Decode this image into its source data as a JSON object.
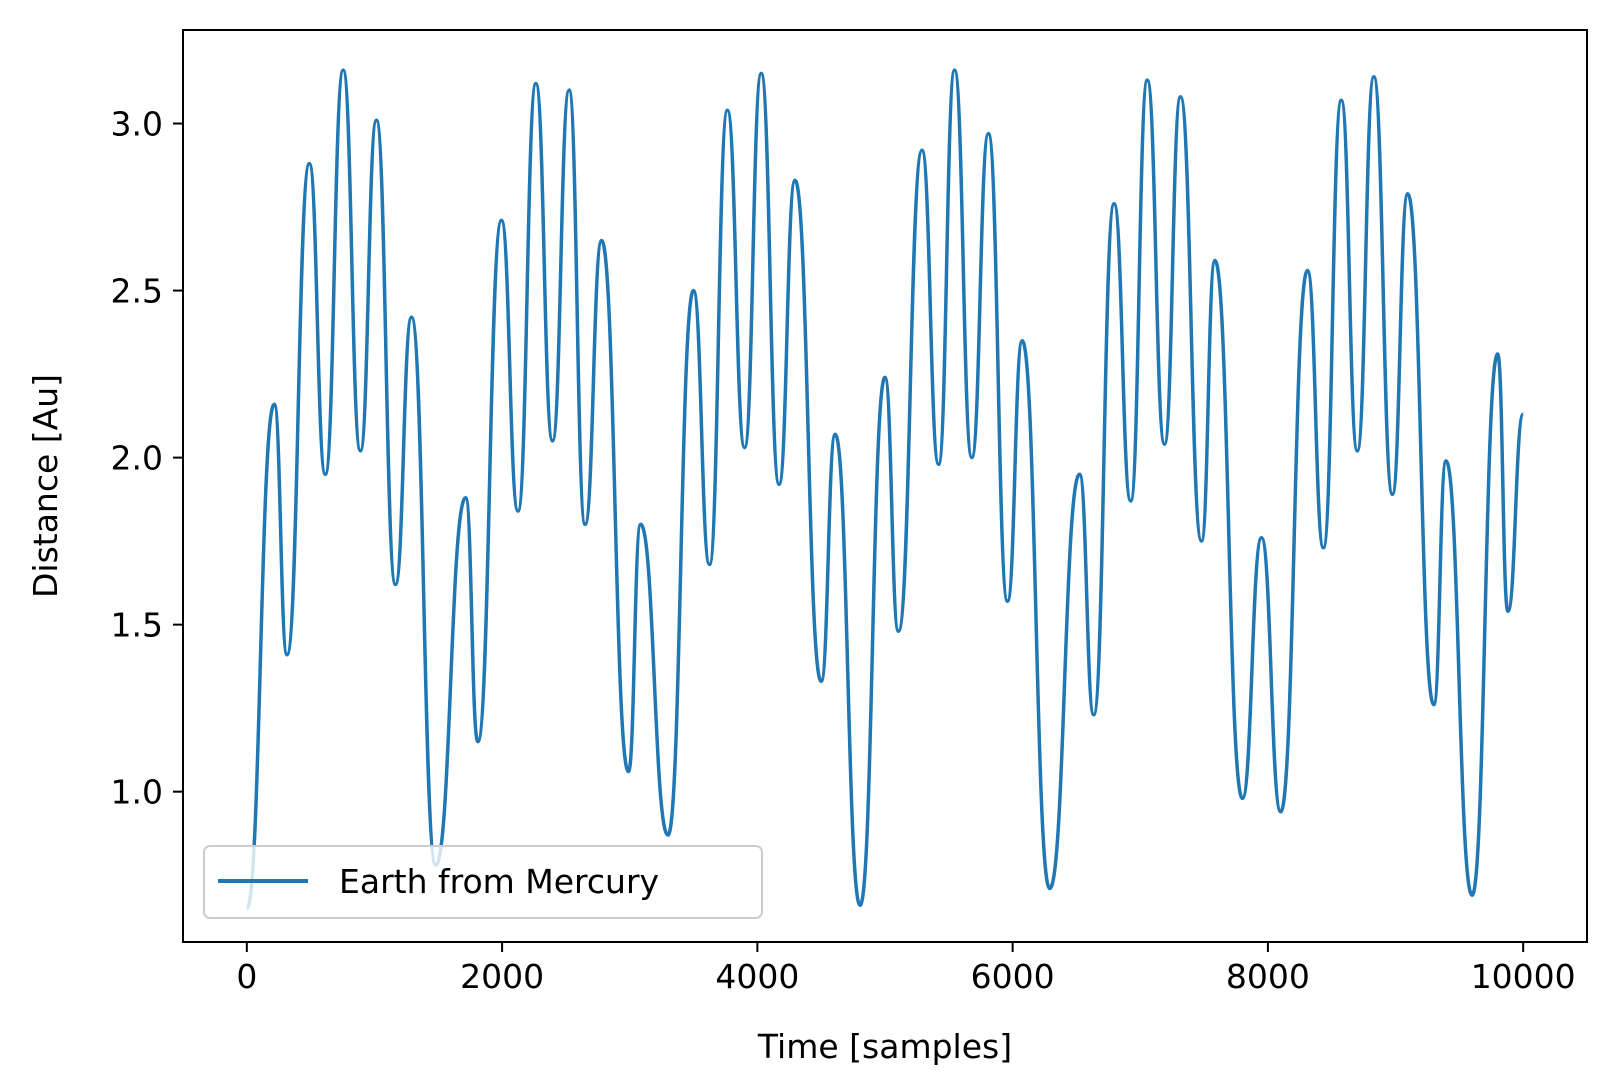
{
  "chart_data": {
    "type": "line",
    "title": "",
    "xlabel": "Time [samples]",
    "ylabel": "Distance [Au]",
    "xlim": [
      -500,
      10500
    ],
    "ylim": [
      0.55,
      3.28
    ],
    "xticks": [
      0,
      2000,
      4000,
      6000,
      8000,
      10000
    ],
    "xtick_labels": [
      "0",
      "2000",
      "4000",
      "6000",
      "8000",
      "10000"
    ],
    "yticks": [
      1.0,
      1.5,
      2.0,
      2.5,
      3.0
    ],
    "ytick_labels": [
      "1.0",
      "1.5",
      "2.0",
      "2.5",
      "3.0"
    ],
    "grid": false,
    "legend_position": "lower-left",
    "colors": {
      "series": "#1f77b4",
      "axes": "#000000",
      "legend_border": "#cccccc"
    },
    "series": [
      {
        "name": "Earth from Mercury",
        "x": [
          0,
          215,
          315,
          490,
          615,
          755,
          890,
          1015,
          1165,
          1290,
          1480,
          1715,
          1810,
          1995,
          2125,
          2265,
          2395,
          2525,
          2650,
          2780,
          2990,
          3085,
          3300,
          3500,
          3625,
          3765,
          3900,
          4030,
          4170,
          4295,
          4500,
          4610,
          4805,
          5000,
          5105,
          5290,
          5420,
          5545,
          5680,
          5810,
          5960,
          6075,
          6290,
          6525,
          6635,
          6795,
          6925,
          7055,
          7190,
          7315,
          7480,
          7585,
          7800,
          7950,
          8100,
          8310,
          8435,
          8575,
          8700,
          8830,
          8975,
          9095,
          9300,
          9395,
          9600,
          9800,
          9880,
          10000
        ],
        "y": [
          0.65,
          2.16,
          1.41,
          2.88,
          1.95,
          3.16,
          2.02,
          3.01,
          1.62,
          2.42,
          0.78,
          1.88,
          1.15,
          2.71,
          1.84,
          3.12,
          2.05,
          3.1,
          1.8,
          2.65,
          1.06,
          1.8,
          0.87,
          2.5,
          1.68,
          3.04,
          2.03,
          3.15,
          1.92,
          2.83,
          1.33,
          2.07,
          0.66,
          2.24,
          1.48,
          2.92,
          1.98,
          3.16,
          2.0,
          2.97,
          1.57,
          2.35,
          0.71,
          1.95,
          1.23,
          2.76,
          1.87,
          3.13,
          2.04,
          3.08,
          1.75,
          2.59,
          0.98,
          1.76,
          0.94,
          2.56,
          1.73,
          3.07,
          2.02,
          3.14,
          1.89,
          2.79,
          1.26,
          1.99,
          0.69,
          2.31,
          1.54,
          2.13
        ]
      }
    ]
  }
}
